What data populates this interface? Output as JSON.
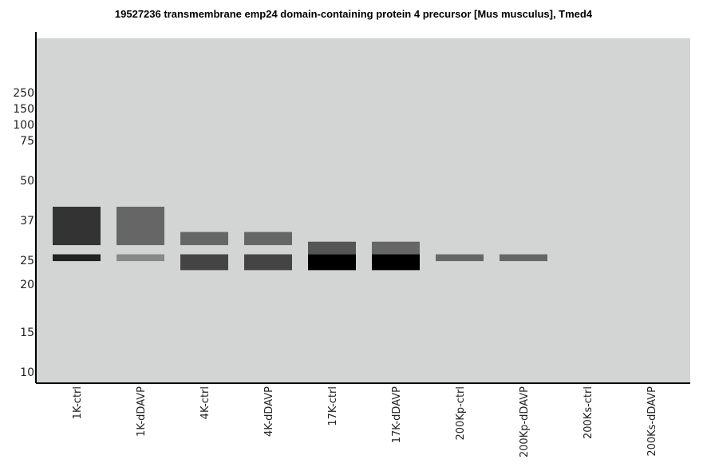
{
  "chart_data": {
    "type": "western-blot",
    "title": "19527236 transmembrane emp24 domain-containing protein 4 precursor [Mus musculus], Tmed4",
    "mw_markers": [
      "250",
      "150",
      "100",
      "75",
      "50",
      "37",
      "25",
      "20",
      "15",
      "10"
    ],
    "lanes": [
      "1K-ctrl",
      "1K-dDAVP",
      "4K-ctrl",
      "4K-dDAVP",
      "17K-ctrl",
      "17K-dDAVP",
      "200Kp-ctrl",
      "200Kp-dDAVP",
      "200Ks-ctrl",
      "200Ks-dDAVP"
    ],
    "bands": [
      {
        "lane": "1K-ctrl",
        "mw_top": 41,
        "mw_bottom": 29,
        "color": "#333333"
      },
      {
        "lane": "1K-ctrl",
        "mw_top": 26.5,
        "mw_bottom": 24.8,
        "color": "#222222"
      },
      {
        "lane": "1K-dDAVP",
        "mw_top": 41,
        "mw_bottom": 29,
        "color": "#666666"
      },
      {
        "lane": "1K-dDAVP",
        "mw_top": 26.5,
        "mw_bottom": 24.8,
        "color": "#888888"
      },
      {
        "lane": "4K-ctrl",
        "mw_top": 33,
        "mw_bottom": 29,
        "color": "#666666"
      },
      {
        "lane": "4K-ctrl",
        "mw_top": 26.5,
        "mw_bottom": 22.8,
        "color": "#444444"
      },
      {
        "lane": "4K-dDAVP",
        "mw_top": 33,
        "mw_bottom": 29,
        "color": "#666666"
      },
      {
        "lane": "4K-dDAVP",
        "mw_top": 26.5,
        "mw_bottom": 22.8,
        "color": "#444444"
      },
      {
        "lane": "17K-ctrl",
        "mw_top": 30,
        "mw_bottom": 26.5,
        "color": "#555555"
      },
      {
        "lane": "17K-ctrl",
        "mw_top": 26.5,
        "mw_bottom": 22.8,
        "color": "#000000"
      },
      {
        "lane": "17K-dDAVP",
        "mw_top": 30,
        "mw_bottom": 26.5,
        "color": "#666666"
      },
      {
        "lane": "17K-dDAVP",
        "mw_top": 26.5,
        "mw_bottom": 22.8,
        "color": "#000000"
      },
      {
        "lane": "200Kp-ctrl",
        "mw_top": 26.5,
        "mw_bottom": 24.8,
        "color": "#666666"
      },
      {
        "lane": "200Kp-dDAVP",
        "mw_top": 26.5,
        "mw_bottom": 24.8,
        "color": "#666666"
      }
    ],
    "background_color": "#d3d4d4"
  }
}
